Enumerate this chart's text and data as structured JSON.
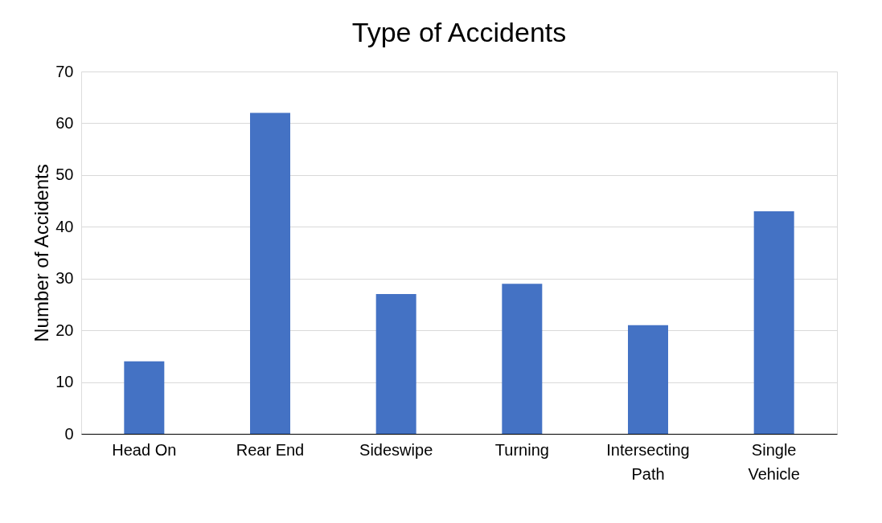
{
  "chart_data": {
    "type": "bar",
    "title": "Type of Accidents",
    "ylabel": "Number of Accidents",
    "categories": [
      "Head On",
      "Rear End",
      "Sideswipe",
      "Turning",
      "Intersecting Path",
      "Single Vehicle"
    ],
    "values": [
      14,
      62,
      27,
      29,
      21,
      43
    ],
    "color": "#4472c4",
    "ylim": [
      0,
      70
    ],
    "yticks": [
      0,
      10,
      20,
      30,
      40,
      50,
      60,
      70
    ],
    "grid": "y"
  }
}
